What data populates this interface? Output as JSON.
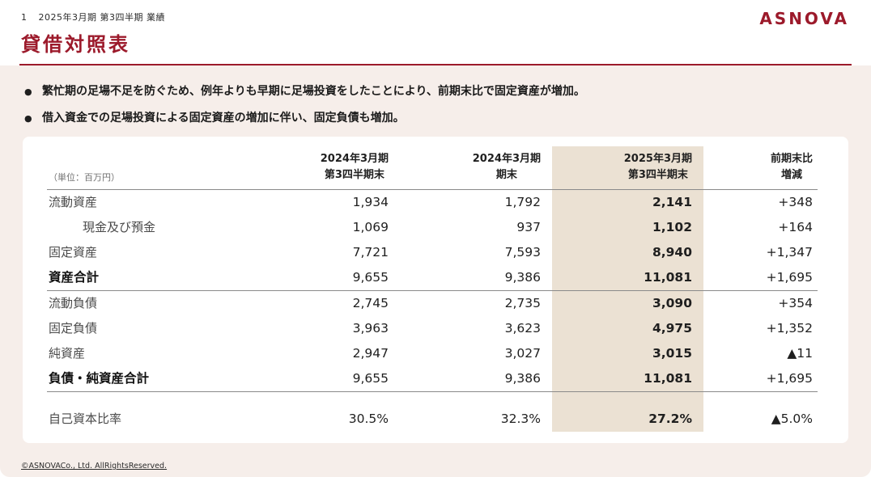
{
  "header": {
    "page_number": "1",
    "section_label": "2025年3月期 第3四半期 業績",
    "logo_text": "ASNOVA"
  },
  "title": "貸借対照表",
  "highlights": {
    "bullets": [
      "繁忙期の足場不足を防ぐため、例年よりも早期に足場投資をしたことにより、前期末比で固定資産が増加。",
      "借入資金での足場投資による固定資産の増加に伴い、固定負債も増加。"
    ]
  },
  "table": {
    "unit_label": "（単位：百万円）",
    "columns": [
      {
        "line1": "2024年3月期",
        "line2": "第3四半期末",
        "highlight": false
      },
      {
        "line1": "2024年3月期",
        "line2": "期末",
        "highlight": false
      },
      {
        "line1": "2025年3月期",
        "line2": "第3四半期末",
        "highlight": true
      },
      {
        "line1": "前期末比",
        "line2": "増減",
        "highlight": false
      }
    ],
    "rows": [
      {
        "label": "流動資産",
        "indent": false,
        "bold": false,
        "separator_after": false,
        "gap_before": false,
        "values": [
          "1,934",
          "1,792",
          "2,141",
          "+348"
        ]
      },
      {
        "label": "現金及び預金",
        "indent": true,
        "bold": false,
        "separator_after": false,
        "gap_before": false,
        "values": [
          "1,069",
          "937",
          "1,102",
          "+164"
        ]
      },
      {
        "label": "固定資産",
        "indent": false,
        "bold": false,
        "separator_after": false,
        "gap_before": false,
        "values": [
          "7,721",
          "7,593",
          "8,940",
          "+1,347"
        ]
      },
      {
        "label": "資産合計",
        "indent": false,
        "bold": true,
        "separator_after": true,
        "gap_before": false,
        "values": [
          "9,655",
          "9,386",
          "11,081",
          "+1,695"
        ]
      },
      {
        "label": "流動負債",
        "indent": false,
        "bold": false,
        "separator_after": false,
        "gap_before": false,
        "values": [
          "2,745",
          "2,735",
          "3,090",
          "+354"
        ]
      },
      {
        "label": "固定負債",
        "indent": false,
        "bold": false,
        "separator_after": false,
        "gap_before": false,
        "values": [
          "3,963",
          "3,623",
          "4,975",
          "+1,352"
        ]
      },
      {
        "label": "純資産",
        "indent": false,
        "bold": false,
        "separator_after": false,
        "gap_before": false,
        "values": [
          "2,947",
          "3,027",
          "3,015",
          "▲11"
        ]
      },
      {
        "label": "負債・純資産合計",
        "indent": false,
        "bold": true,
        "separator_after": true,
        "gap_before": false,
        "values": [
          "9,655",
          "9,386",
          "11,081",
          "+1,695"
        ]
      },
      {
        "label": "自己資本比率",
        "indent": false,
        "bold": false,
        "separator_after": false,
        "gap_before": true,
        "values": [
          "30.5%",
          "32.3%",
          "27.2%",
          "▲5.0%"
        ]
      }
    ]
  },
  "footer": {
    "copyright": "©ASNOVACo., Ltd. AllRightsReserved."
  },
  "colors": {
    "brand_red": "#9c1a2b",
    "highlight_beige": "#ebe1d3",
    "body_background": "#f6eeea"
  }
}
